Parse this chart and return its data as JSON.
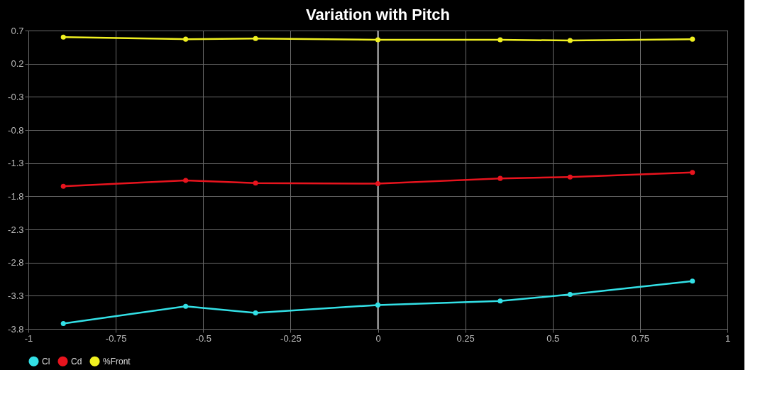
{
  "chart_data": {
    "type": "line",
    "title": "Variation with Pitch",
    "x": [
      -0.9,
      -0.55,
      -0.35,
      0,
      0.35,
      0.55,
      0.9
    ],
    "series": [
      {
        "name": "Cl",
        "color": "#33e0e6",
        "values": [
          -3.72,
          -3.46,
          -3.56,
          -3.44,
          -3.38,
          -3.28,
          -3.08
        ]
      },
      {
        "name": "Cd",
        "color": "#e8141e",
        "values": [
          -1.65,
          -1.56,
          -1.6,
          -1.61,
          -1.53,
          -1.51,
          -1.44
        ]
      },
      {
        "name": "%Front",
        "color": "#f0f020",
        "values": [
          0.6,
          0.57,
          0.58,
          0.56,
          0.56,
          0.55,
          0.57
        ]
      }
    ],
    "xlim": [
      -1,
      1
    ],
    "xticks": [
      -1,
      -0.75,
      -0.5,
      -0.25,
      0,
      0.25,
      0.5,
      0.75,
      1
    ],
    "ylim": [
      -3.8,
      0.7
    ],
    "yticks": [
      -3.8,
      -3.3,
      -2.8,
      -2.3,
      -1.8,
      -1.3,
      -0.8,
      -0.3,
      0.2,
      0.7
    ],
    "ref_lines": [
      {
        "axis": "x",
        "value": 0,
        "color": "#cccccc"
      }
    ],
    "grid": true,
    "legend": "bottom",
    "marker": "circle",
    "line_style": "solid"
  }
}
